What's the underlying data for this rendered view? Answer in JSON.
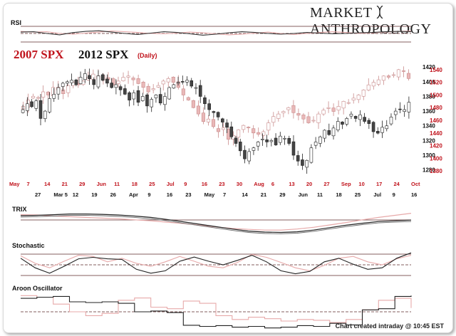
{
  "header": {
    "brand_left": "MARKET",
    "brand_right": "ANTHROPOLOGY",
    "title_2007": "2007 SPX",
    "title_2012": "2012 SPX",
    "subtitle": "(Daily)"
  },
  "panels": {
    "rsi_label": "RSI",
    "trix_label": "TRIX",
    "stochastic_label": "Stochastic",
    "aroon_label": "Aroon Oscillator"
  },
  "footer": {
    "credit": "Chart created intraday @ 10:45 EST"
  },
  "colors": {
    "series_2007": "#c0121b",
    "series_2012": "#111111",
    "line_2007": "#e7a9a9",
    "grid": "#5b2a2a"
  },
  "chart_data": {
    "type": "candlestick",
    "title": "2007 SPX 2012 SPX (Daily)",
    "axis_2012_right": {
      "ticks": [
        1280,
        1300,
        1320,
        1340,
        1360,
        1380,
        1400,
        1420
      ],
      "ylim": [
        1270,
        1425
      ]
    },
    "axis_2007_right": {
      "ticks": [
        1380,
        1400,
        1420,
        1440,
        1460,
        1480,
        1500,
        1520,
        1540
      ],
      "ylim": [
        1370,
        1550
      ]
    },
    "x_labels_2007": [
      "May",
      "7",
      "14",
      "21",
      "29",
      "Jun",
      "11",
      "18",
      "25",
      "Jul",
      "9",
      "16",
      "23",
      "30",
      "Aug",
      "6",
      "13",
      "20",
      "27",
      "Sep",
      "10",
      "17",
      "24",
      "Oct"
    ],
    "x_labels_2012": [
      "27",
      "Mar 5",
      "12",
      "19",
      "26",
      "Apr",
      "9",
      "16",
      "23",
      "May",
      "7",
      "14",
      "21",
      "29",
      "Jun",
      "11",
      "18",
      "25",
      "Jul",
      "9",
      "16"
    ],
    "series": [
      {
        "name": "2012 SPX",
        "close": [
          1362,
          1370,
          1366,
          1374,
          1350,
          1360,
          1377,
          1383,
          1392,
          1398,
          1400,
          1402,
          1396,
          1406,
          1411,
          1404,
          1396,
          1408,
          1402,
          1398,
          1392,
          1396,
          1389,
          1383,
          1375,
          1385,
          1372,
          1380,
          1367,
          1376,
          1382,
          1371,
          1380,
          1392,
          1396,
          1399,
          1400,
          1402,
          1394,
          1392,
          1380,
          1370,
          1362,
          1358,
          1352,
          1345,
          1338,
          1325,
          1316,
          1306,
          1295,
          1305,
          1310,
          1318,
          1322,
          1318,
          1320,
          1314,
          1326,
          1323,
          1316,
          1300,
          1292,
          1286,
          1293,
          1310,
          1318,
          1325,
          1334,
          1328,
          1337,
          1346,
          1342,
          1350,
          1356,
          1350,
          1355,
          1346,
          1343,
          1332,
          1330,
          1338,
          1340,
          1352,
          1360,
          1362,
          1362,
          1372
        ]
      },
      {
        "name": "2007 SPX",
        "close": [
          1482,
          1492,
          1498,
          1496,
          1505,
          1500,
          1512,
          1508,
          1502,
          1515,
          1520,
          1516,
          1522,
          1528,
          1533,
          1525,
          1531,
          1524,
          1516,
          1522,
          1528,
          1530,
          1524,
          1518,
          1512,
          1505,
          1510,
          1515,
          1522,
          1526,
          1520,
          1512,
          1500,
          1492,
          1480,
          1470,
          1458,
          1462,
          1450,
          1442,
          1448,
          1430,
          1436,
          1445,
          1452,
          1448,
          1440,
          1438,
          1442,
          1456,
          1466,
          1470,
          1474,
          1480,
          1472,
          1468,
          1462,
          1456,
          1460,
          1470,
          1476,
          1480,
          1474,
          1482,
          1490,
          1488,
          1495,
          1500,
          1508,
          1516,
          1520,
          1524,
          1530,
          1528,
          1532,
          1540,
          1538,
          1526
        ]
      }
    ],
    "indicators": {
      "rsi": {
        "2012": [
          0.58,
          0.6,
          0.5,
          0.42,
          0.55,
          0.62,
          0.66,
          0.58,
          0.5,
          0.44,
          0.52,
          0.6,
          0.56,
          0.48,
          0.4,
          0.46,
          0.54,
          0.6,
          0.56,
          0.5,
          0.46,
          0.5,
          0.56,
          0.52,
          0.48,
          0.5,
          0.54,
          0.56,
          0.6,
          0.62,
          0.6
        ],
        "2007": [
          0.62,
          0.58,
          0.6,
          0.5,
          0.46,
          0.52,
          0.58,
          0.64,
          0.6,
          0.56,
          0.5,
          0.48,
          0.52,
          0.58,
          0.54,
          0.48,
          0.42,
          0.46,
          0.52,
          0.58,
          0.5,
          0.44,
          0.5,
          0.56,
          0.6,
          0.56,
          0.5,
          0.54,
          0.58,
          0.62,
          0.64
        ]
      },
      "trix": {
        "2012": [
          0.75,
          0.76,
          0.78,
          0.8,
          0.8,
          0.79,
          0.77,
          0.74,
          0.7,
          0.64,
          0.57,
          0.5,
          0.43,
          0.36,
          0.3,
          0.27,
          0.26,
          0.28,
          0.33,
          0.4,
          0.47,
          0.53,
          0.58,
          0.6,
          0.62
        ],
        "2007": [
          0.78,
          0.77,
          0.74,
          0.72,
          0.7,
          0.68,
          0.66,
          0.63,
          0.6,
          0.56,
          0.52,
          0.47,
          0.42,
          0.38,
          0.35,
          0.33,
          0.33,
          0.36,
          0.41,
          0.48,
          0.55,
          0.63,
          0.7,
          0.76,
          0.82
        ]
      },
      "stochastic": {
        "2012": [
          0.72,
          0.4,
          0.22,
          0.45,
          0.7,
          0.75,
          0.7,
          0.68,
          0.35,
          0.22,
          0.3,
          0.62,
          0.76,
          0.62,
          0.5,
          0.65,
          0.82,
          0.6,
          0.3,
          0.2,
          0.28,
          0.6,
          0.72,
          0.52,
          0.35,
          0.4,
          0.72,
          0.9
        ],
        "2007": [
          0.8,
          0.55,
          0.4,
          0.62,
          0.82,
          0.78,
          0.6,
          0.72,
          0.55,
          0.45,
          0.6,
          0.78,
          0.62,
          0.45,
          0.4,
          0.58,
          0.85,
          0.75,
          0.58,
          0.4,
          0.3,
          0.48,
          0.72,
          0.78,
          0.6,
          0.5,
          0.7,
          0.82
        ]
      },
      "aroon": {
        "2012": [
          0.85,
          0.88,
          0.9,
          0.76,
          0.74,
          0.76,
          0.72,
          0.5,
          0.52,
          0.48,
          0.15,
          0.12,
          0.14,
          0.1,
          0.12,
          0.08,
          0.1,
          0.14,
          0.12,
          0.2,
          0.16,
          0.55,
          0.58,
          0.9,
          0.92
        ],
        "2007": [
          0.92,
          0.88,
          0.7,
          0.5,
          0.4,
          0.46,
          0.8,
          0.86,
          0.62,
          0.58,
          0.78,
          0.72,
          0.4,
          0.3,
          0.36,
          0.32,
          0.26,
          0.3,
          0.28,
          0.22,
          0.3,
          0.55,
          0.8,
          0.85,
          0.6
        ]
      }
    }
  }
}
